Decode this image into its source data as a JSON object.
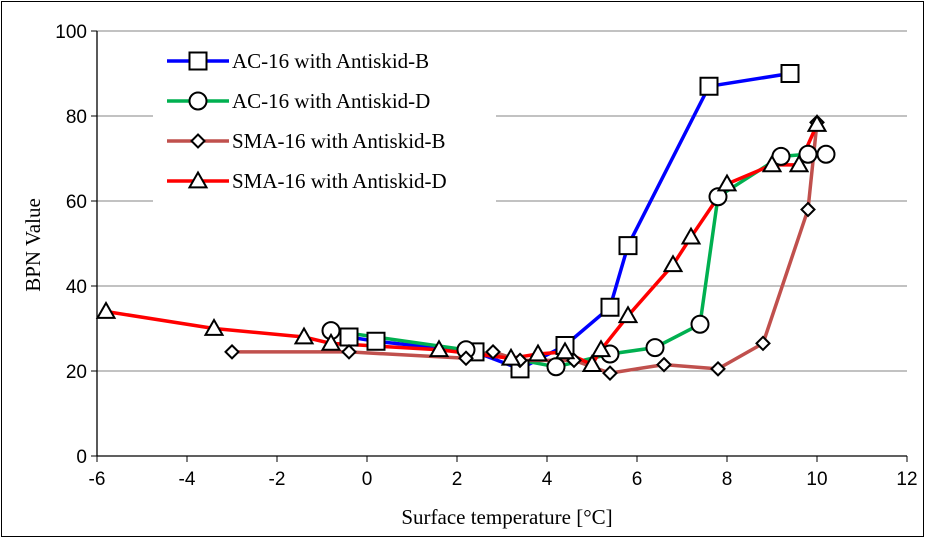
{
  "chart_data": {
    "type": "line",
    "xlabel": "Surface temperature [°C]",
    "ylabel": "BPN Value",
    "xlim": [
      -6,
      12
    ],
    "ylim": [
      0,
      100
    ],
    "xticks": [
      "-6",
      "-4",
      "-2",
      "0",
      "2",
      "4",
      "6",
      "8",
      "10",
      "12"
    ],
    "yticks": [
      "0",
      "20",
      "40",
      "60",
      "80",
      "100"
    ],
    "grid": "horizontal",
    "legend_position": "top-left",
    "series": [
      {
        "name": "AC-16 with Antiskid-B",
        "color": "#0000ff",
        "marker": "square",
        "points": [
          [
            -0.4,
            28
          ],
          [
            0.2,
            27
          ],
          [
            2.4,
            24.5
          ],
          [
            3.4,
            20.5
          ],
          [
            4.4,
            26
          ],
          [
            5.4,
            35
          ],
          [
            5.8,
            49.5
          ],
          [
            7.6,
            87
          ],
          [
            9.4,
            90
          ]
        ]
      },
      {
        "name": "AC-16 with Antiskid-D",
        "color": "#00b050",
        "marker": "circle",
        "points": [
          [
            -0.8,
            29.5
          ],
          [
            2.2,
            25
          ],
          [
            4.2,
            21
          ],
          [
            5.4,
            24
          ],
          [
            6.4,
            25.5
          ],
          [
            7.4,
            31
          ],
          [
            7.8,
            61
          ],
          [
            9.2,
            70.5
          ],
          [
            9.8,
            71
          ],
          [
            10.2,
            71
          ]
        ]
      },
      {
        "name": "SMA-16 with Antiskid-B",
        "color": "#c0504d",
        "marker": "diamond",
        "points": [
          [
            -3,
            24.5
          ],
          [
            -0.4,
            24.5
          ],
          [
            2.2,
            23
          ],
          [
            2.8,
            24.5
          ],
          [
            3.4,
            22.5
          ],
          [
            4.6,
            22.5
          ],
          [
            5.4,
            19.5
          ],
          [
            6.6,
            21.5
          ],
          [
            7.8,
            20.5
          ],
          [
            8.8,
            26.5
          ],
          [
            9.8,
            58
          ],
          [
            10,
            78.5
          ]
        ]
      },
      {
        "name": "SMA-16 with Antiskid-D",
        "color": "#ff0000",
        "marker": "triangle",
        "points": [
          [
            -5.8,
            34
          ],
          [
            -3.4,
            30
          ],
          [
            -1.4,
            28
          ],
          [
            -0.8,
            26.5
          ],
          [
            1.6,
            25
          ],
          [
            3.2,
            23
          ],
          [
            3.8,
            24
          ],
          [
            4.4,
            24.5
          ],
          [
            5,
            21.5
          ],
          [
            5.2,
            25
          ],
          [
            5.8,
            33
          ],
          [
            6.8,
            45
          ],
          [
            7.2,
            51.5
          ],
          [
            8,
            64
          ],
          [
            9,
            68.5
          ],
          [
            9.6,
            68.5
          ],
          [
            10,
            78
          ]
        ]
      }
    ]
  }
}
